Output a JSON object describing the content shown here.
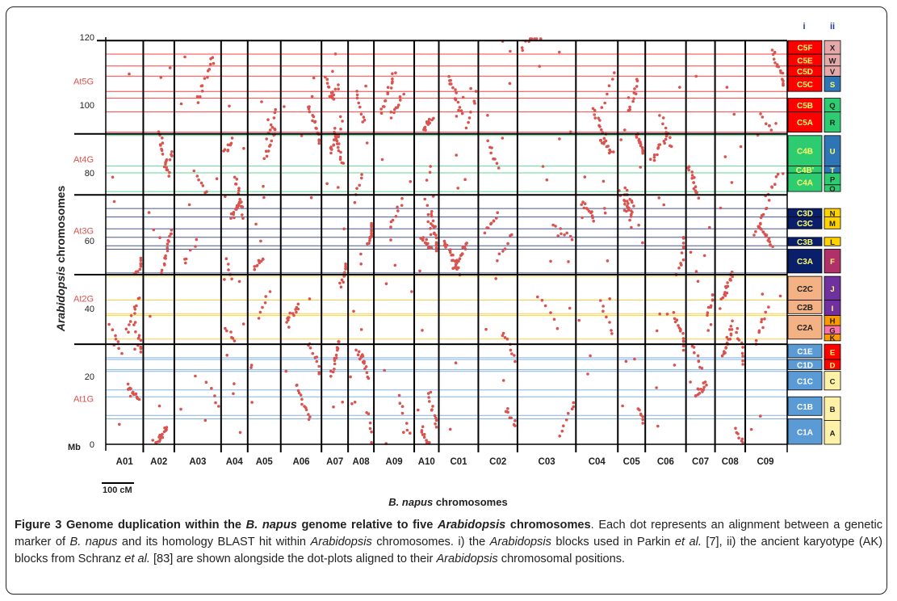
{
  "figure": {
    "ylabel_italic": "Arabidopsis",
    "ylabel_rest": " chromosomes",
    "xlabel_italic": "B. napus",
    "xlabel_rest": " chromosomes",
    "y_unit": "Mb",
    "y_ticks": [
      {
        "value": 0,
        "label": "0"
      },
      {
        "value": 20,
        "label": "20"
      },
      {
        "value": 40,
        "label": "40"
      },
      {
        "value": 60,
        "label": "60"
      },
      {
        "value": 80,
        "label": "80"
      },
      {
        "value": 100,
        "label": "100"
      },
      {
        "value": 120,
        "label": "120"
      }
    ],
    "scale_bar_label": "100 cM",
    "col_i_header": "i",
    "col_ii_header": "ii",
    "at_chromosomes": [
      {
        "label": "At1G",
        "start": 0,
        "end": 29.5,
        "label_pos": 13.5
      },
      {
        "label": "At2G",
        "start": 29.5,
        "end": 50,
        "label_pos": 43
      },
      {
        "label": "At3G",
        "start": 50,
        "end": 73.5,
        "label_pos": 63
      },
      {
        "label": "At4G",
        "start": 73.5,
        "end": 91.5,
        "label_pos": 84
      },
      {
        "label": "At5G",
        "start": 91.5,
        "end": 119,
        "label_pos": 107
      }
    ],
    "napus_chromosomes": [
      {
        "label": "A01",
        "length": 93
      },
      {
        "label": "A02",
        "length": 77
      },
      {
        "label": "A03",
        "length": 116
      },
      {
        "label": "A04",
        "length": 66
      },
      {
        "label": "A05",
        "length": 82
      },
      {
        "label": "A06",
        "length": 101
      },
      {
        "label": "A07",
        "length": 66
      },
      {
        "label": "A08",
        "length": 64
      },
      {
        "label": "A09",
        "length": 100
      },
      {
        "label": "A10",
        "length": 61
      },
      {
        "label": "C01",
        "length": 98
      },
      {
        "label": "C02",
        "length": 97
      },
      {
        "label": "C03",
        "length": 145
      },
      {
        "label": "C04",
        "length": 104
      },
      {
        "label": "C05",
        "length": 68
      },
      {
        "label": "C06",
        "length": 101
      },
      {
        "label": "C07",
        "length": 72
      },
      {
        "label": "C08",
        "length": 75
      },
      {
        "label": "C09",
        "length": 100
      }
    ],
    "parkin_blocks": [
      {
        "label": "C1A",
        "start": 0,
        "end": 7.5,
        "color": "#5b9bd5"
      },
      {
        "label": "C1B",
        "start": 8.5,
        "end": 14,
        "color": "#5b9bd5"
      },
      {
        "label": "C1C",
        "start": 16,
        "end": 21.5,
        "color": "#5b9bd5"
      },
      {
        "label": "C1D",
        "start": 22,
        "end": 25,
        "color": "#5b9bd5"
      },
      {
        "label": "C1E",
        "start": 25.5,
        "end": 29.5,
        "color": "#5b9bd5"
      },
      {
        "label": "C2A",
        "start": 31,
        "end": 38,
        "color": "#f4b183"
      },
      {
        "label": "C2B",
        "start": 38.5,
        "end": 42.5,
        "color": "#f4b183"
      },
      {
        "label": "C2C",
        "start": 42.5,
        "end": 49.5,
        "color": "#f4b183"
      },
      {
        "label": "C3A",
        "start": 50.5,
        "end": 57.5,
        "color": "#0a1f6b"
      },
      {
        "label": "C3B",
        "start": 58.5,
        "end": 61,
        "color": "#0a1f6b"
      },
      {
        "label": "C3C",
        "start": 63.5,
        "end": 67,
        "color": "#0a1f6b"
      },
      {
        "label": "C3D",
        "start": 67,
        "end": 69.5,
        "color": "#0a1f6b"
      },
      {
        "label": "C4A",
        "start": 74.5,
        "end": 80,
        "color": "#2ecc71"
      },
      {
        "label": "C4B'",
        "start": 80,
        "end": 82,
        "color": "#2ecc71"
      },
      {
        "label": "C4B",
        "start": 82,
        "end": 91,
        "color": "#2ecc71"
      },
      {
        "label": "C5A",
        "start": 92,
        "end": 98,
        "color": "#ff0000"
      },
      {
        "label": "C5B",
        "start": 98,
        "end": 102,
        "color": "#ff0000"
      },
      {
        "label": "C5C",
        "start": 104,
        "end": 108.5,
        "color": "#ff0000"
      },
      {
        "label": "C5D",
        "start": 108.5,
        "end": 111.5,
        "color": "#ff0000"
      },
      {
        "label": "C5E",
        "start": 111.5,
        "end": 115,
        "color": "#ff0000"
      },
      {
        "label": "C5F",
        "start": 115,
        "end": 119,
        "color": "#ff0000"
      }
    ],
    "ak_blocks": [
      {
        "label": "A",
        "start": 0,
        "end": 7,
        "color": "#fff2a8"
      },
      {
        "label": "B",
        "start": 7,
        "end": 14,
        "color": "#fff2a8"
      },
      {
        "label": "C",
        "start": 16,
        "end": 21.5,
        "color": "#fff2a8"
      },
      {
        "label": "D",
        "start": 22,
        "end": 25,
        "color": "#ff0000"
      },
      {
        "label": "E",
        "start": 25,
        "end": 29.5,
        "color": "#ff0000"
      },
      {
        "label": "K",
        "start": 30.5,
        "end": 32.5,
        "color": "#ff9900"
      },
      {
        "label": "G",
        "start": 32.5,
        "end": 35,
        "color": "#ff6fa8"
      },
      {
        "label": "H",
        "start": 35,
        "end": 38,
        "color": "#ff9900"
      },
      {
        "label": "I",
        "start": 38,
        "end": 42.5,
        "color": "#7030a0"
      },
      {
        "label": "J",
        "start": 42.5,
        "end": 49.5,
        "color": "#7030a0"
      },
      {
        "label": "F",
        "start": 50.5,
        "end": 57.5,
        "color": "#b0306a"
      },
      {
        "label": "L",
        "start": 58.5,
        "end": 61,
        "color": "#ffd200"
      },
      {
        "label": "M",
        "start": 63.5,
        "end": 67,
        "color": "#ffd200"
      },
      {
        "label": "N",
        "start": 67,
        "end": 69.5,
        "color": "#ffd200"
      },
      {
        "label": "O",
        "start": 74.5,
        "end": 76.5,
        "color": "#2ecc71"
      },
      {
        "label": "P",
        "start": 76.5,
        "end": 80,
        "color": "#2ecc71"
      },
      {
        "label": "T",
        "start": 80,
        "end": 82,
        "color": "#2e75b6"
      },
      {
        "label": "U",
        "start": 82,
        "end": 91,
        "color": "#2e75b6"
      },
      {
        "label": "R",
        "start": 92,
        "end": 98,
        "color": "#2ecc71"
      },
      {
        "label": "Q",
        "start": 98,
        "end": 102,
        "color": "#2ecc71"
      },
      {
        "label": "S",
        "start": 104,
        "end": 108.5,
        "color": "#2e75b6"
      },
      {
        "label": "V",
        "start": 108.5,
        "end": 111.5,
        "color": "#e6a9a9"
      },
      {
        "label": "W",
        "start": 111.5,
        "end": 115,
        "color": "#e6a9a9"
      },
      {
        "label": "X",
        "start": 115,
        "end": 119,
        "color": "#e6a9a9"
      }
    ],
    "colors": {
      "dot": "#d9534f",
      "at1_line": "#5b9bd5",
      "at2_line": "#ffc000",
      "at3_line": "#0a1f6b",
      "at4_line": "#2ecc71",
      "at5_line": "#ff0000",
      "at_label": "#d9534f"
    }
  },
  "caption": {
    "title_prefix": "Figure 3 Genome duplication within the ",
    "title_species": "B. napus",
    "title_mid": " genome relative to five ",
    "title_genus": "Arabidopsis",
    "title_end": " chromosomes",
    "s1": ". Each dot represents an alignment between a genetic marker of ",
    "s1_species": "B. napus",
    "s2": " and its homology BLAST hit within ",
    "s2_genus": "Arabidopsis",
    "s3": " chromosomes. i) the ",
    "s3_genus": "Arabidopsis",
    "s4": " blocks used in Parkin ",
    "s4_etal": "et al.",
    "s5": " [7], ii) the ancient karyotype (AK) blocks from Schranz ",
    "s5_etal": "et al.",
    "s6": " [83] are shown alongside the dot-plots aligned to their ",
    "s6_genus": "Arabidopsis",
    "s7": " chromosomal positions."
  }
}
